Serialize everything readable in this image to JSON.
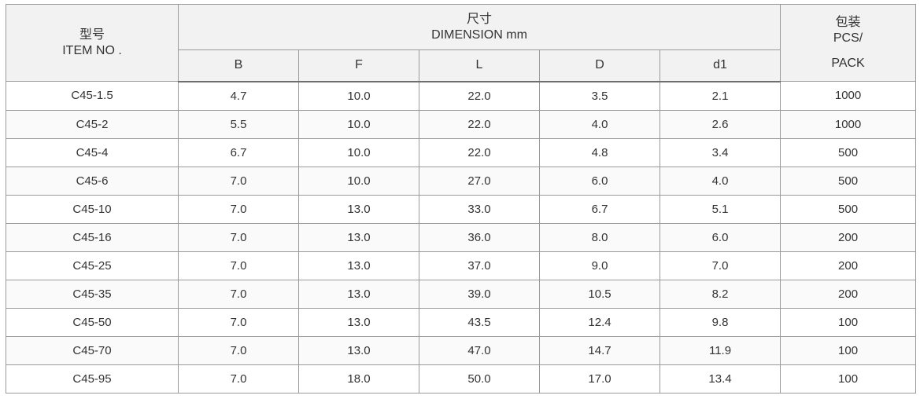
{
  "header": {
    "item_zh": "型号",
    "item_en": "ITEM NO .",
    "dimension_zh": "尺寸",
    "dimension_en": "DIMENSION mm",
    "pack_zh": "包装",
    "pack_en_1": "PCS/",
    "pack_en_2": "PACK",
    "dim_columns": [
      "B",
      "F",
      "L",
      "D",
      "d1"
    ]
  },
  "rows": [
    {
      "item": "C45-1.5",
      "B": "4.7",
      "F": "10.0",
      "L": "22.0",
      "D": "3.5",
      "d1": "2.1",
      "pack": "1000"
    },
    {
      "item": "C45-2",
      "B": "5.5",
      "F": "10.0",
      "L": "22.0",
      "D": "4.0",
      "d1": "2.6",
      "pack": "1000"
    },
    {
      "item": "C45-4",
      "B": "6.7",
      "F": "10.0",
      "L": "22.0",
      "D": "4.8",
      "d1": "3.4",
      "pack": "500"
    },
    {
      "item": "C45-6",
      "B": "7.0",
      "F": "10.0",
      "L": "27.0",
      "D": "6.0",
      "d1": "4.0",
      "pack": "500"
    },
    {
      "item": "C45-10",
      "B": "7.0",
      "F": "13.0",
      "L": "33.0",
      "D": "6.7",
      "d1": "5.1",
      "pack": "500"
    },
    {
      "item": "C45-16",
      "B": "7.0",
      "F": "13.0",
      "L": "36.0",
      "D": "8.0",
      "d1": "6.0",
      "pack": "200"
    },
    {
      "item": "C45-25",
      "B": "7.0",
      "F": "13.0",
      "L": "37.0",
      "D": "9.0",
      "d1": "7.0",
      "pack": "200"
    },
    {
      "item": "C45-35",
      "B": "7.0",
      "F": "13.0",
      "L": "39.0",
      "D": "10.5",
      "d1": "8.2",
      "pack": "200"
    },
    {
      "item": "C45-50",
      "B": "7.0",
      "F": "13.0",
      "L": "43.5",
      "D": "12.4",
      "d1": "9.8",
      "pack": "100"
    },
    {
      "item": "C45-70",
      "B": "7.0",
      "F": "13.0",
      "L": "47.0",
      "D": "14.7",
      "d1": "11.9",
      "pack": "100"
    },
    {
      "item": "C45-95",
      "B": "7.0",
      "F": "18.0",
      "L": "50.0",
      "D": "17.0",
      "d1": "13.4",
      "pack": "100"
    }
  ]
}
